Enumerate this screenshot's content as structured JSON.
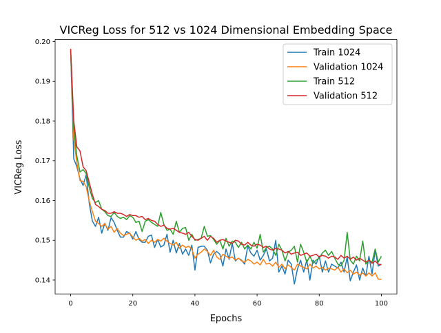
{
  "chart_data": {
    "type": "line",
    "title": "VICReg Loss for 512 vs 1024 Dimensional Embedding Space",
    "xlabel": "Epochs",
    "ylabel": "VICReg Loss",
    "xlim": [
      -5,
      105
    ],
    "ylim": [
      0.1365,
      0.2005
    ],
    "xticks": [
      0,
      20,
      40,
      60,
      80,
      100
    ],
    "yticks": [
      0.14,
      0.15,
      0.16,
      0.17,
      0.18,
      0.19,
      0.2
    ],
    "ytick_labels": [
      "0.14",
      "0.15",
      "0.16",
      "0.17",
      "0.18",
      "0.19",
      "0.20"
    ],
    "grid": false,
    "legend_position": "top-right",
    "series": [
      {
        "name": "Train 1024",
        "color": "#1f77b4",
        "values": [
          0.1975,
          0.1705,
          0.1685,
          0.1655,
          0.1638,
          0.1665,
          0.1592,
          0.1548,
          0.1535,
          0.1558,
          0.1518,
          0.1543,
          0.1525,
          0.1557,
          0.1545,
          0.1525,
          0.1508,
          0.1508,
          0.1522,
          0.1518,
          0.1503,
          0.1522,
          0.1502,
          0.1495,
          0.1495,
          0.151,
          0.1513,
          0.1482,
          0.1502,
          0.1483,
          0.1488,
          0.1515,
          0.147,
          0.15,
          0.1468,
          0.1492,
          0.1465,
          0.1478,
          0.1462,
          0.1488,
          0.1425,
          0.1482,
          0.1485,
          0.1485,
          0.1475,
          0.1443,
          0.1465,
          0.1472,
          0.1465,
          0.1435,
          0.1478,
          0.1452,
          0.1493,
          0.1448,
          0.1455,
          0.145,
          0.144,
          0.1485,
          0.1468,
          0.146,
          0.1475,
          0.145,
          0.1462,
          0.1478,
          0.1448,
          0.1455,
          0.15,
          0.142,
          0.1435,
          0.1415,
          0.145,
          0.144,
          0.139,
          0.1428,
          0.145,
          0.142,
          0.145,
          0.14,
          0.145,
          0.144,
          0.146,
          0.142,
          0.1448,
          0.142,
          0.144,
          0.1435,
          0.143,
          0.1445,
          0.142,
          0.1458,
          0.1398,
          0.142,
          0.1438,
          0.14,
          0.143,
          0.141,
          0.146,
          0.1415,
          0.1475,
          0.1435,
          0.144
        ]
      },
      {
        "name": "Validation 1024",
        "color": "#ff7f0e",
        "values": [
          0.1978,
          0.1755,
          0.1695,
          0.165,
          0.1648,
          0.1635,
          0.1598,
          0.1572,
          0.1548,
          0.1542,
          0.1535,
          0.1542,
          0.1528,
          0.1535,
          0.152,
          0.153,
          0.1518,
          0.1512,
          0.1515,
          0.1518,
          0.1508,
          0.15,
          0.1505,
          0.1498,
          0.1502,
          0.1492,
          0.15,
          0.1495,
          0.1502,
          0.1498,
          0.1505,
          0.1498,
          0.1492,
          0.1488,
          0.1495,
          0.148,
          0.1488,
          0.1482,
          0.1485,
          0.1478,
          0.1455,
          0.1465,
          0.147,
          0.1478,
          0.1472,
          0.1462,
          0.1475,
          0.1458,
          0.1452,
          0.1465,
          0.146,
          0.1455,
          0.1458,
          0.145,
          0.1455,
          0.1448,
          0.1445,
          0.1452,
          0.1448,
          0.144,
          0.1445,
          0.1438,
          0.1452,
          0.144,
          0.1442,
          0.1435,
          0.1445,
          0.1432,
          0.144,
          0.1428,
          0.1438,
          0.1432,
          0.1425,
          0.144,
          0.1435,
          0.1432,
          0.1428,
          0.144,
          0.143,
          0.1435,
          0.1428,
          0.1432,
          0.1425,
          0.143,
          0.1428,
          0.1425,
          0.1432,
          0.142,
          0.1428,
          0.1418,
          0.1425,
          0.1415,
          0.142,
          0.1412,
          0.1418,
          0.141,
          0.1418,
          0.141,
          0.1418,
          0.1402,
          0.1402
        ]
      },
      {
        "name": "Train 512",
        "color": "#2ca02c",
        "values": [
          0.1978,
          0.178,
          0.1712,
          0.1672,
          0.1678,
          0.1668,
          0.1632,
          0.1605,
          0.1595,
          0.16,
          0.1578,
          0.1572,
          0.1562,
          0.156,
          0.157,
          0.156,
          0.1555,
          0.1558,
          0.1552,
          0.1562,
          0.1558,
          0.1545,
          0.1548,
          0.1522,
          0.1548,
          0.1552,
          0.1545,
          0.154,
          0.1535,
          0.157,
          0.154,
          0.1525,
          0.1528,
          0.1515,
          0.1548,
          0.152,
          0.153,
          0.1532,
          0.15,
          0.1515,
          0.15,
          0.1502,
          0.1505,
          0.1535,
          0.151,
          0.1512,
          0.1502,
          0.149,
          0.15,
          0.1478,
          0.1505,
          0.1485,
          0.1498,
          0.1495,
          0.1482,
          0.1495,
          0.1478,
          0.1488,
          0.1478,
          0.1495,
          0.148,
          0.1515,
          0.147,
          0.1482,
          0.1485,
          0.1478,
          0.1462,
          0.149,
          0.1475,
          0.1448,
          0.147,
          0.1475,
          0.1485,
          0.1445,
          0.149,
          0.147,
          0.1445,
          0.146,
          0.1442,
          0.145,
          0.1455,
          0.1468,
          0.1475,
          0.1462,
          0.1472,
          0.1455,
          0.144,
          0.1435,
          0.145,
          0.152,
          0.145,
          0.144,
          0.146,
          0.1448,
          0.1498,
          0.144,
          0.145,
          0.1445,
          0.1478,
          0.1445,
          0.146
        ]
      },
      {
        "name": "Validation 512",
        "color": "#d62728",
        "values": [
          0.1982,
          0.18,
          0.1735,
          0.1725,
          0.1685,
          0.1675,
          0.1645,
          0.1615,
          0.159,
          0.1585,
          0.1578,
          0.1575,
          0.1568,
          0.1568,
          0.1572,
          0.1568,
          0.1568,
          0.1565,
          0.156,
          0.1565,
          0.1562,
          0.1562,
          0.1558,
          0.156,
          0.1552,
          0.1555,
          0.155,
          0.1548,
          0.154,
          0.1535,
          0.1538,
          0.153,
          0.1528,
          0.153,
          0.1525,
          0.152,
          0.1518,
          0.1515,
          0.152,
          0.151,
          0.1502,
          0.15,
          0.1505,
          0.151,
          0.15,
          0.151,
          0.1505,
          0.1495,
          0.15,
          0.1502,
          0.1498,
          0.1495,
          0.1492,
          0.15,
          0.1498,
          0.149,
          0.1488,
          0.1495,
          0.1488,
          0.1485,
          0.149,
          0.1488,
          0.1482,
          0.1485,
          0.1478,
          0.1475,
          0.148,
          0.1478,
          0.1475,
          0.1468,
          0.1472,
          0.1465,
          0.1468,
          0.147,
          0.1462,
          0.1465,
          0.1468,
          0.146,
          0.1462,
          0.1465,
          0.1458,
          0.1462,
          0.146,
          0.1455,
          0.146,
          0.1458,
          0.1452,
          0.1462,
          0.1455,
          0.146,
          0.1452,
          0.1458,
          0.145,
          0.1455,
          0.145,
          0.1445,
          0.145,
          0.1442,
          0.1448,
          0.144,
          0.1438
        ]
      }
    ]
  }
}
